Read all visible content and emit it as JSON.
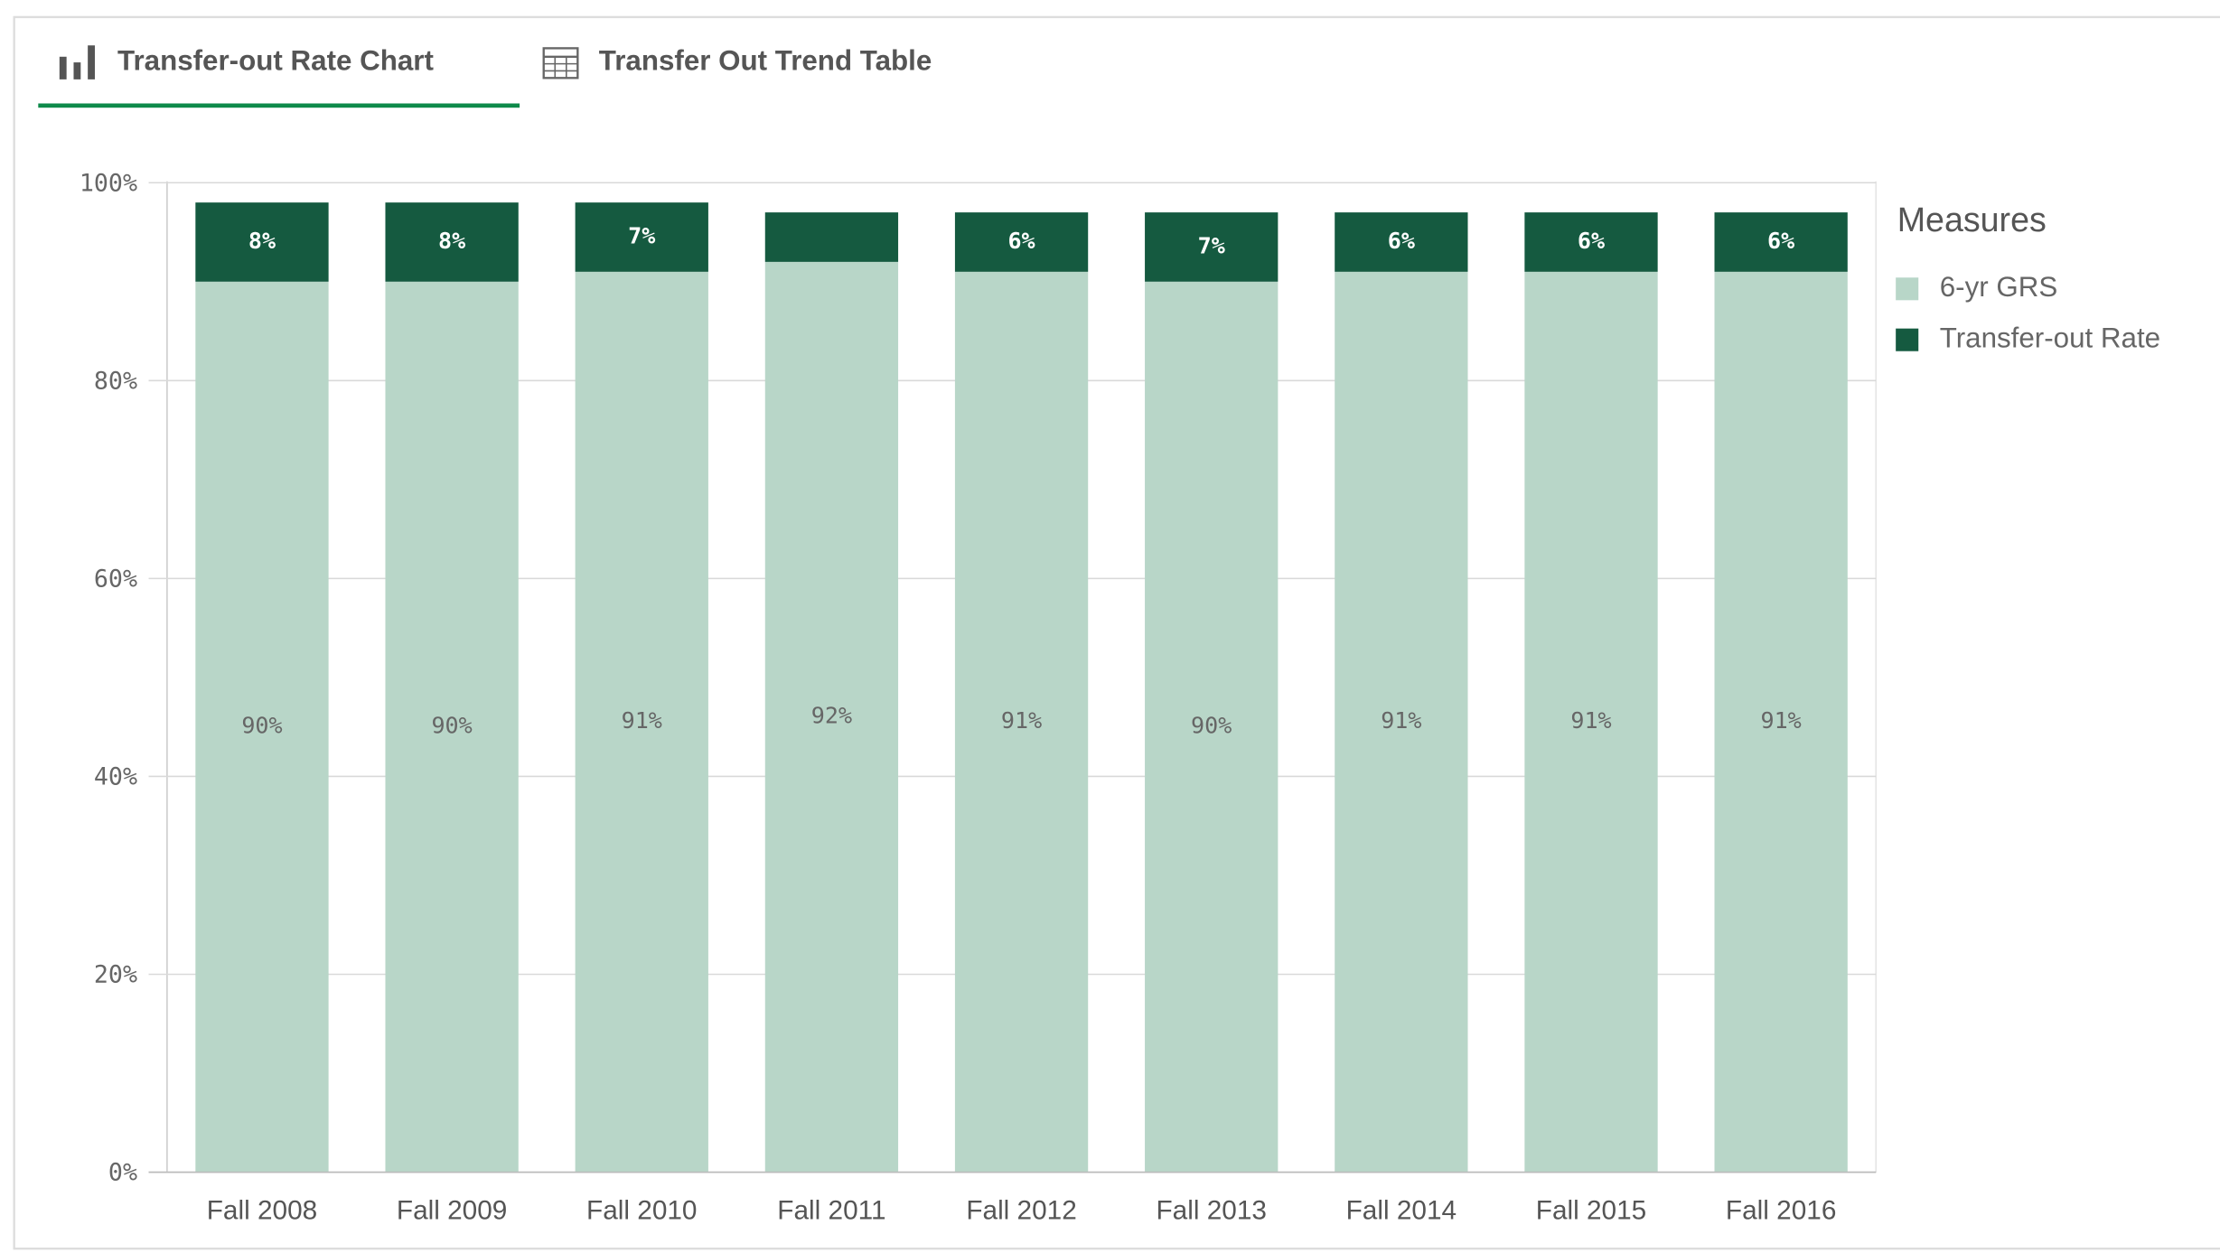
{
  "tabs": [
    "Transfer-out Rate Chart",
    "Transfer Out Trend Table"
  ],
  "chart_data": {
    "type": "stacked_bar",
    "legend_title": "Measures",
    "categories": [
      "Fall 2008",
      "Fall 2009",
      "Fall 2010",
      "Fall 2011",
      "Fall 2012",
      "Fall 2013",
      "Fall 2014",
      "Fall 2015",
      "Fall 2016"
    ],
    "series": [
      {
        "name": "6-yr GRS",
        "color": "#b8d6c8",
        "values": [
          90,
          90,
          91,
          92,
          91,
          90,
          91,
          91,
          91
        ],
        "value_labels": [
          "90%",
          "90%",
          "91%",
          "92%",
          "91%",
          "90%",
          "91%",
          "91%",
          "91%"
        ]
      },
      {
        "name": "Transfer-out Rate",
        "color": "#155a40",
        "values": [
          8,
          8,
          7,
          5,
          6,
          7,
          6,
          6,
          6
        ],
        "value_labels": [
          "8%",
          "8%",
          "7%",
          null,
          "6%",
          "7%",
          "6%",
          "6%",
          "6%"
        ]
      }
    ],
    "ylim": [
      0,
      100
    ],
    "yticks": [
      {
        "value": 0,
        "label": "0%"
      },
      {
        "value": 20,
        "label": "20%"
      },
      {
        "value": 40,
        "label": "40%"
      },
      {
        "value": 60,
        "label": "60%"
      },
      {
        "value": 80,
        "label": "80%"
      },
      {
        "value": 100,
        "label": "100%"
      }
    ],
    "grid": true,
    "legend": "right"
  }
}
